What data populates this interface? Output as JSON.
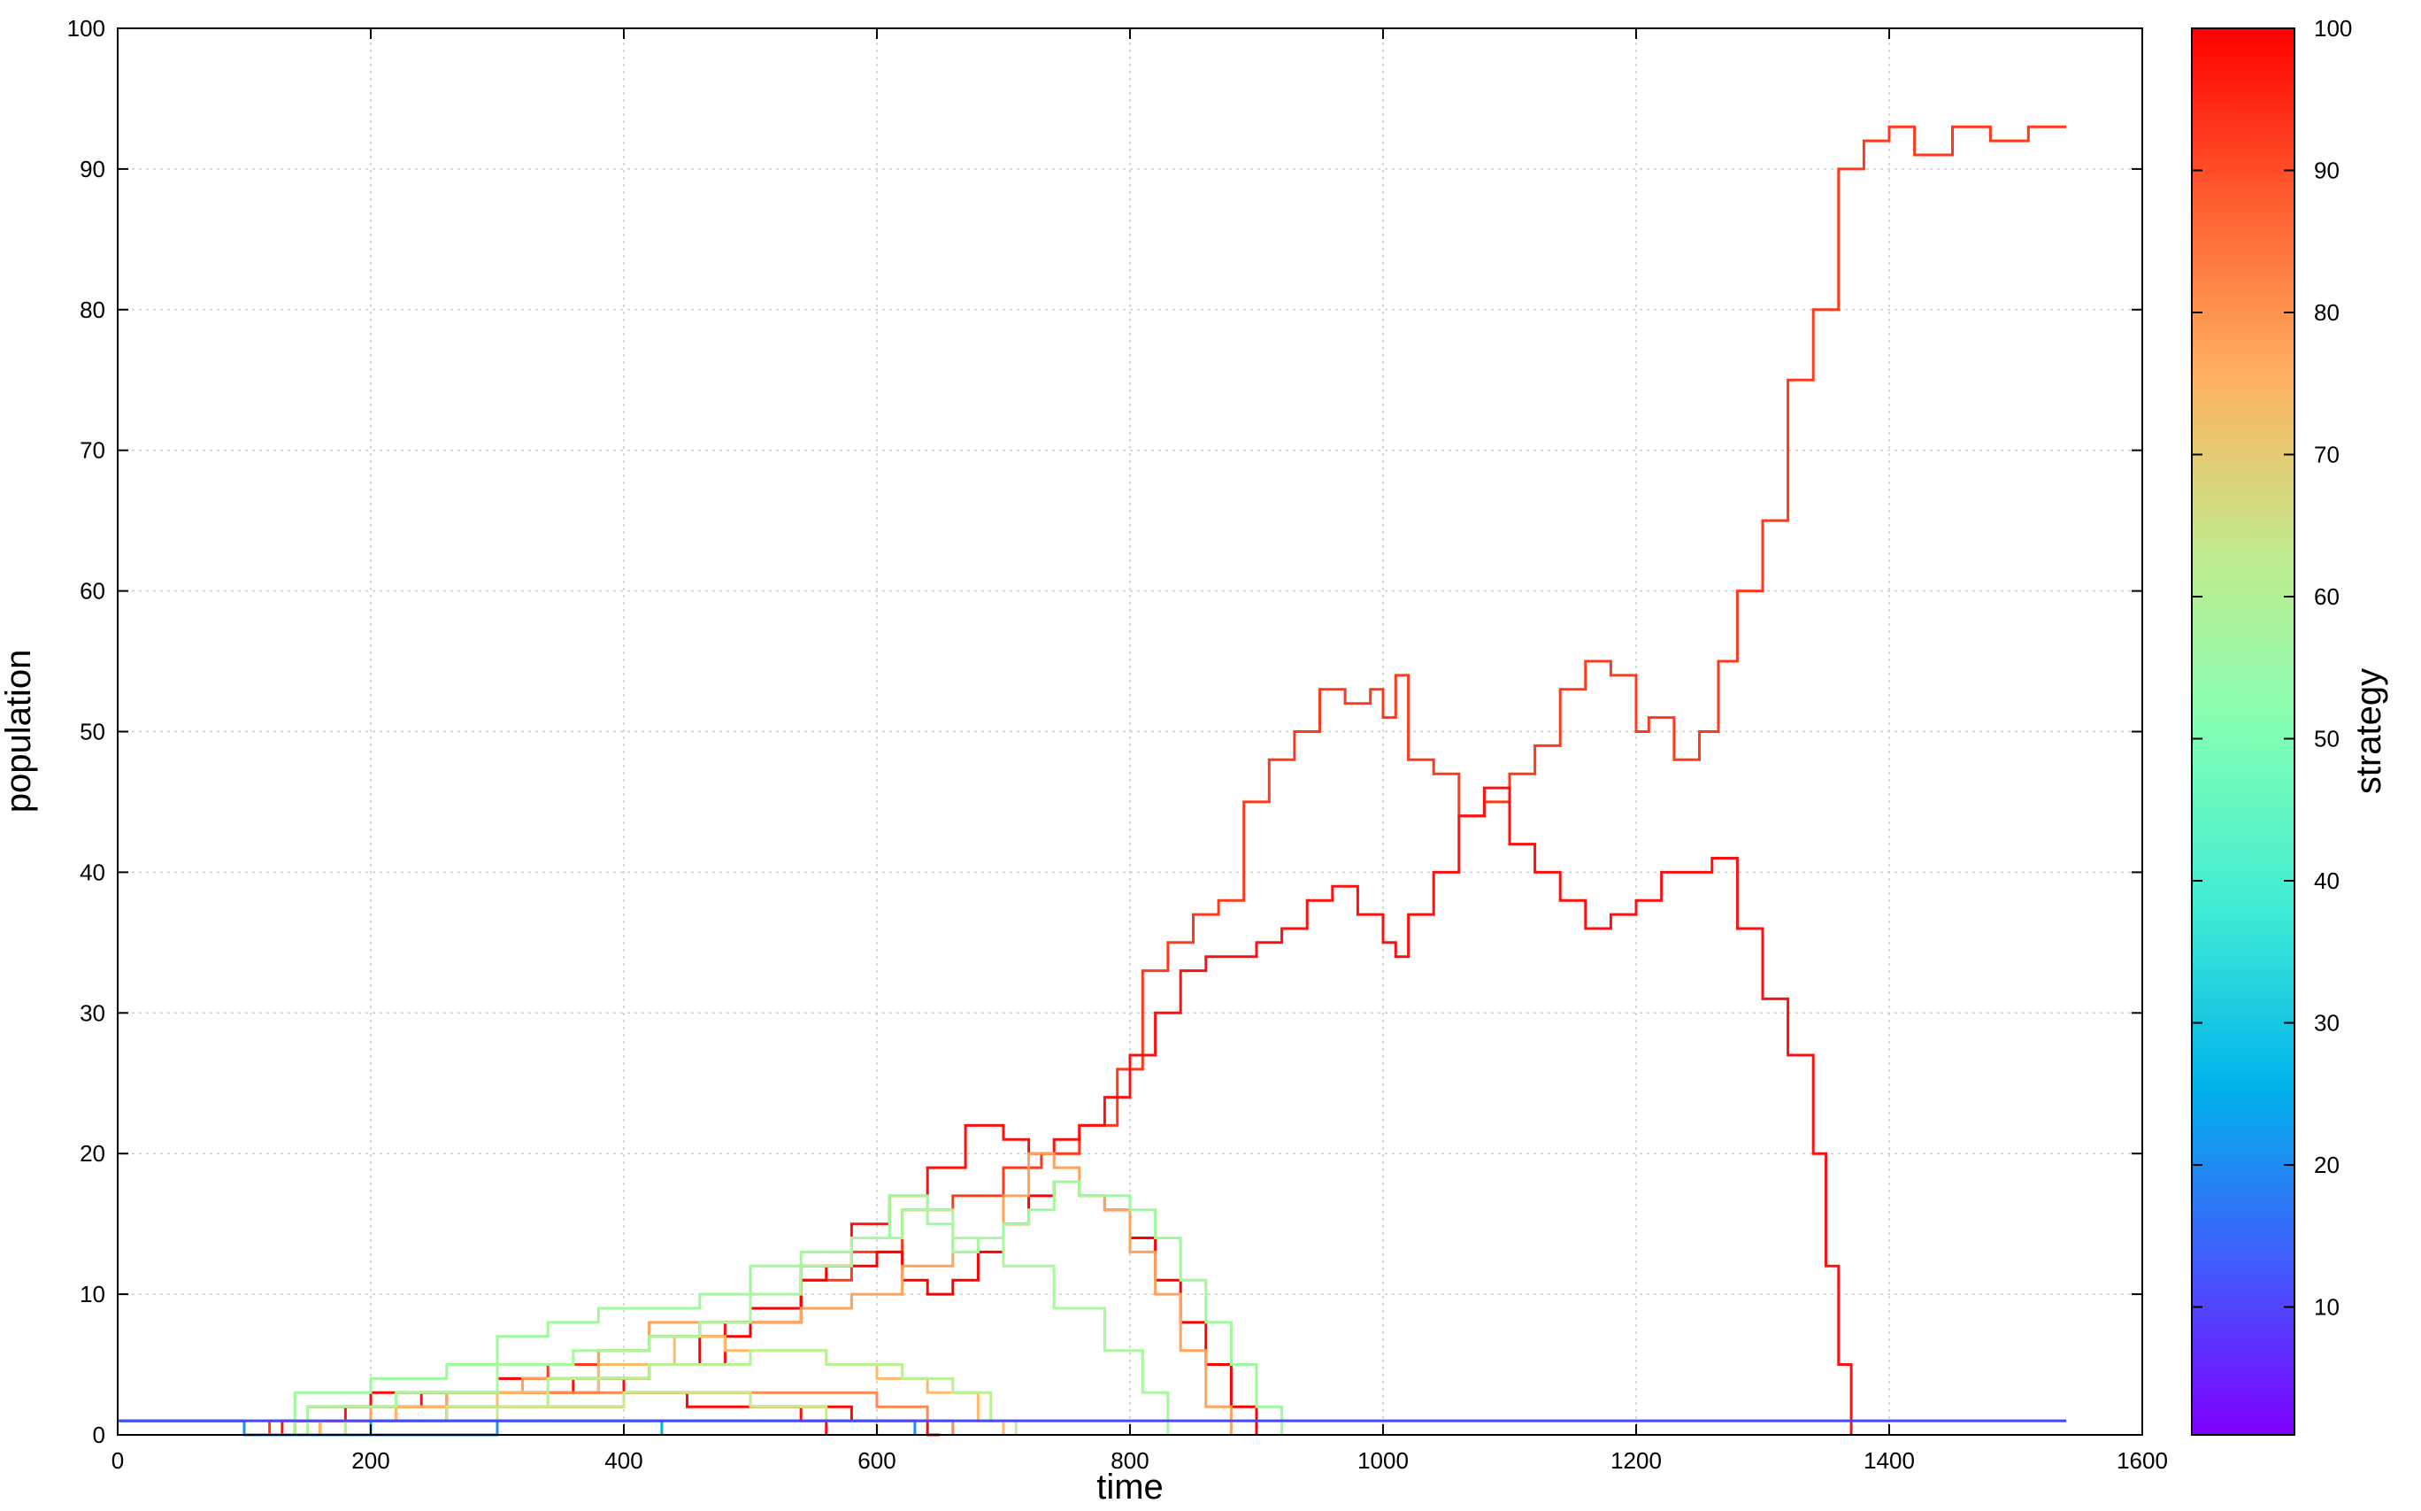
{
  "chart_data": {
    "type": "line",
    "xlabel": "time",
    "ylabel": "population",
    "xlim": [
      0,
      1600
    ],
    "ylim": [
      0,
      100
    ],
    "xticks": [
      0,
      200,
      400,
      600,
      800,
      1000,
      1200,
      1400,
      1600
    ],
    "yticks": [
      0,
      10,
      20,
      30,
      40,
      50,
      60,
      70,
      80,
      90,
      100
    ],
    "grid": true,
    "colorbar": {
      "label": "strategy",
      "range": [
        1,
        100
      ],
      "ticks": [
        10,
        20,
        30,
        40,
        50,
        60,
        70,
        80,
        90,
        100
      ],
      "colormap": "rainbow",
      "colors": [
        "#7f00ff",
        "#3f5efb",
        "#00b4eb",
        "#40ecd4",
        "#80ffb4",
        "#c0eb8d",
        "#ffb360",
        "#ff5f30",
        "#ff0000"
      ]
    },
    "series": [
      {
        "strategy": 91,
        "color": "#ff3a1c",
        "x": [
          0,
          95,
          100,
          120,
          150,
          200,
          260,
          300,
          340,
          380,
          420,
          460,
          500,
          540,
          580,
          620,
          660,
          700,
          730,
          760,
          790,
          810,
          830,
          850,
          870,
          890,
          910,
          930,
          950,
          970,
          990,
          1000,
          1010,
          1020,
          1040,
          1060,
          1080,
          1100,
          1120,
          1140,
          1160,
          1180,
          1200,
          1210,
          1230,
          1250,
          1265,
          1280,
          1300,
          1320,
          1340,
          1360,
          1380,
          1400,
          1420,
          1450,
          1480,
          1510,
          1540
        ],
        "y": [
          1,
          1,
          0,
          1,
          1,
          2,
          3,
          4,
          5,
          6,
          7,
          8,
          9,
          11,
          13,
          16,
          17,
          19,
          20,
          22,
          26,
          33,
          35,
          37,
          38,
          45,
          48,
          50,
          53,
          52,
          53,
          51,
          54,
          48,
          47,
          44,
          45,
          47,
          49,
          53,
          55,
          54,
          50,
          51,
          48,
          50,
          55,
          60,
          65,
          75,
          80,
          90,
          92,
          93,
          91,
          93,
          92,
          93,
          93
        ]
      },
      {
        "strategy": 99,
        "color": "#ff1010",
        "x": [
          0,
          95,
          100,
          130,
          180,
          240,
          300,
          360,
          420,
          480,
          540,
          580,
          610,
          640,
          670,
          700,
          720,
          740,
          760,
          780,
          800,
          820,
          840,
          860,
          880,
          900,
          920,
          940,
          960,
          980,
          1000,
          1010,
          1020,
          1040,
          1060,
          1080,
          1100,
          1120,
          1140,
          1160,
          1180,
          1200,
          1220,
          1240,
          1260,
          1280,
          1300,
          1320,
          1340,
          1350,
          1360,
          1370
        ],
        "y": [
          1,
          1,
          0,
          1,
          2,
          3,
          3,
          4,
          5,
          8,
          12,
          15,
          17,
          19,
          22,
          21,
          20,
          21,
          22,
          24,
          27,
          30,
          33,
          34,
          34,
          35,
          36,
          38,
          39,
          37,
          35,
          34,
          37,
          40,
          44,
          46,
          42,
          40,
          38,
          36,
          37,
          38,
          40,
          40,
          41,
          36,
          31,
          27,
          20,
          12,
          5,
          0
        ]
      },
      {
        "strategy": 100,
        "color": "#ff0000",
        "x": [
          0,
          95,
          100,
          140,
          200,
          260,
          300,
          340,
          380,
          420,
          460,
          500,
          540,
          560,
          580,
          600,
          620,
          640,
          660,
          680,
          700,
          720,
          740,
          760,
          780,
          800,
          820,
          840,
          860,
          880,
          900
        ],
        "y": [
          1,
          1,
          0,
          1,
          1,
          2,
          3,
          3,
          4,
          5,
          7,
          9,
          11,
          12,
          12,
          13,
          11,
          10,
          11,
          13,
          15,
          17,
          18,
          17,
          16,
          14,
          11,
          8,
          5,
          2,
          0
        ]
      },
      {
        "strategy": 98,
        "color": "#ff0808",
        "x": [
          0,
          95,
          100,
          150,
          200,
          250,
          300,
          350,
          400,
          450,
          500,
          550,
          580,
          600,
          620,
          640,
          650
        ],
        "y": [
          1,
          1,
          0,
          2,
          3,
          3,
          4,
          4,
          3,
          3,
          2,
          2,
          1,
          1,
          1,
          0,
          0
        ]
      },
      {
        "strategy": 97,
        "color": "#ff0c0a",
        "x": [
          0,
          95,
          100,
          160,
          220,
          280,
          340,
          400,
          450,
          500,
          540,
          560
        ],
        "y": [
          1,
          1,
          0,
          1,
          2,
          2,
          2,
          3,
          2,
          2,
          1,
          0
        ]
      },
      {
        "strategy": 78,
        "color": "#ffa35a",
        "x": [
          0,
          95,
          100,
          140,
          200,
          260,
          320,
          380,
          420,
          460,
          500,
          540,
          580,
          620,
          660,
          700,
          720,
          740,
          760,
          780,
          800,
          820,
          840,
          860,
          880
        ],
        "y": [
          1,
          1,
          0,
          1,
          2,
          3,
          4,
          6,
          8,
          8,
          8,
          9,
          10,
          12,
          14,
          17,
          20,
          19,
          17,
          16,
          13,
          10,
          6,
          2,
          0
        ]
      },
      {
        "strategy": 74,
        "color": "#ffba67",
        "x": [
          0,
          95,
          100,
          160,
          220,
          300,
          380,
          440,
          480,
          520,
          560,
          600,
          640,
          680,
          700
        ],
        "y": [
          1,
          1,
          0,
          1,
          2,
          3,
          5,
          7,
          6,
          6,
          5,
          4,
          3,
          1,
          0
        ]
      },
      {
        "strategy": 82,
        "color": "#ff8a4c",
        "x": [
          0,
          95,
          100,
          180,
          260,
          340,
          420,
          480,
          540,
          600,
          640,
          660
        ],
        "y": [
          1,
          1,
          0,
          1,
          2,
          3,
          3,
          3,
          3,
          2,
          1,
          0
        ]
      },
      {
        "strategy": 58,
        "color": "#9dfb9a",
        "x": [
          0,
          95,
          100,
          140,
          200,
          260,
          300,
          340,
          380,
          420,
          460,
          500,
          540,
          580,
          610,
          640,
          660,
          680,
          700,
          720,
          740,
          760,
          780,
          800,
          820,
          840,
          860,
          880,
          900,
          920
        ],
        "y": [
          1,
          1,
          0,
          3,
          4,
          5,
          7,
          8,
          9,
          9,
          10,
          12,
          13,
          14,
          17,
          15,
          13,
          14,
          15,
          16,
          18,
          17,
          17,
          16,
          14,
          11,
          8,
          5,
          2,
          0
        ]
      },
      {
        "strategy": 56,
        "color": "#a8f89d",
        "x": [
          0,
          95,
          100,
          150,
          220,
          300,
          360,
          420,
          460,
          500,
          540,
          580,
          620,
          660,
          700,
          740,
          780,
          810,
          830
        ],
        "y": [
          1,
          1,
          0,
          2,
          3,
          5,
          6,
          7,
          8,
          10,
          12,
          14,
          16,
          14,
          12,
          9,
          6,
          3,
          0
        ]
      },
      {
        "strategy": 62,
        "color": "#b8f294",
        "x": [
          0,
          95,
          100,
          180,
          260,
          340,
          420,
          500,
          560,
          620,
          660,
          690,
          710
        ],
        "y": [
          1,
          1,
          0,
          1,
          2,
          4,
          5,
          6,
          5,
          4,
          3,
          1,
          0
        ]
      },
      {
        "strategy": 66,
        "color": "#c8e98c",
        "x": [
          0,
          95,
          100,
          200,
          300,
          400,
          500,
          560,
          600
        ],
        "y": [
          1,
          1,
          0,
          1,
          2,
          3,
          2,
          1,
          0
        ]
      },
      {
        "strategy": 30,
        "color": "#00b4eb",
        "x": [
          0,
          95,
          100,
          200,
          300,
          400,
          420,
          430
        ],
        "y": [
          1,
          1,
          0,
          1,
          1,
          1,
          1,
          0
        ]
      },
      {
        "strategy": 20,
        "color": "#1f8ff7",
        "x": [
          0,
          95,
          100,
          300,
          500,
          600,
          620,
          630
        ],
        "y": [
          1,
          1,
          0,
          1,
          1,
          1,
          1,
          0
        ]
      },
      {
        "strategy": 12,
        "color": "#4848fb",
        "x": [
          0,
          95,
          100,
          400,
          800,
          1200,
          1400,
          1430,
          1540
        ],
        "y": [
          1,
          1,
          1,
          1,
          1,
          1,
          1,
          1,
          1
        ]
      }
    ]
  }
}
